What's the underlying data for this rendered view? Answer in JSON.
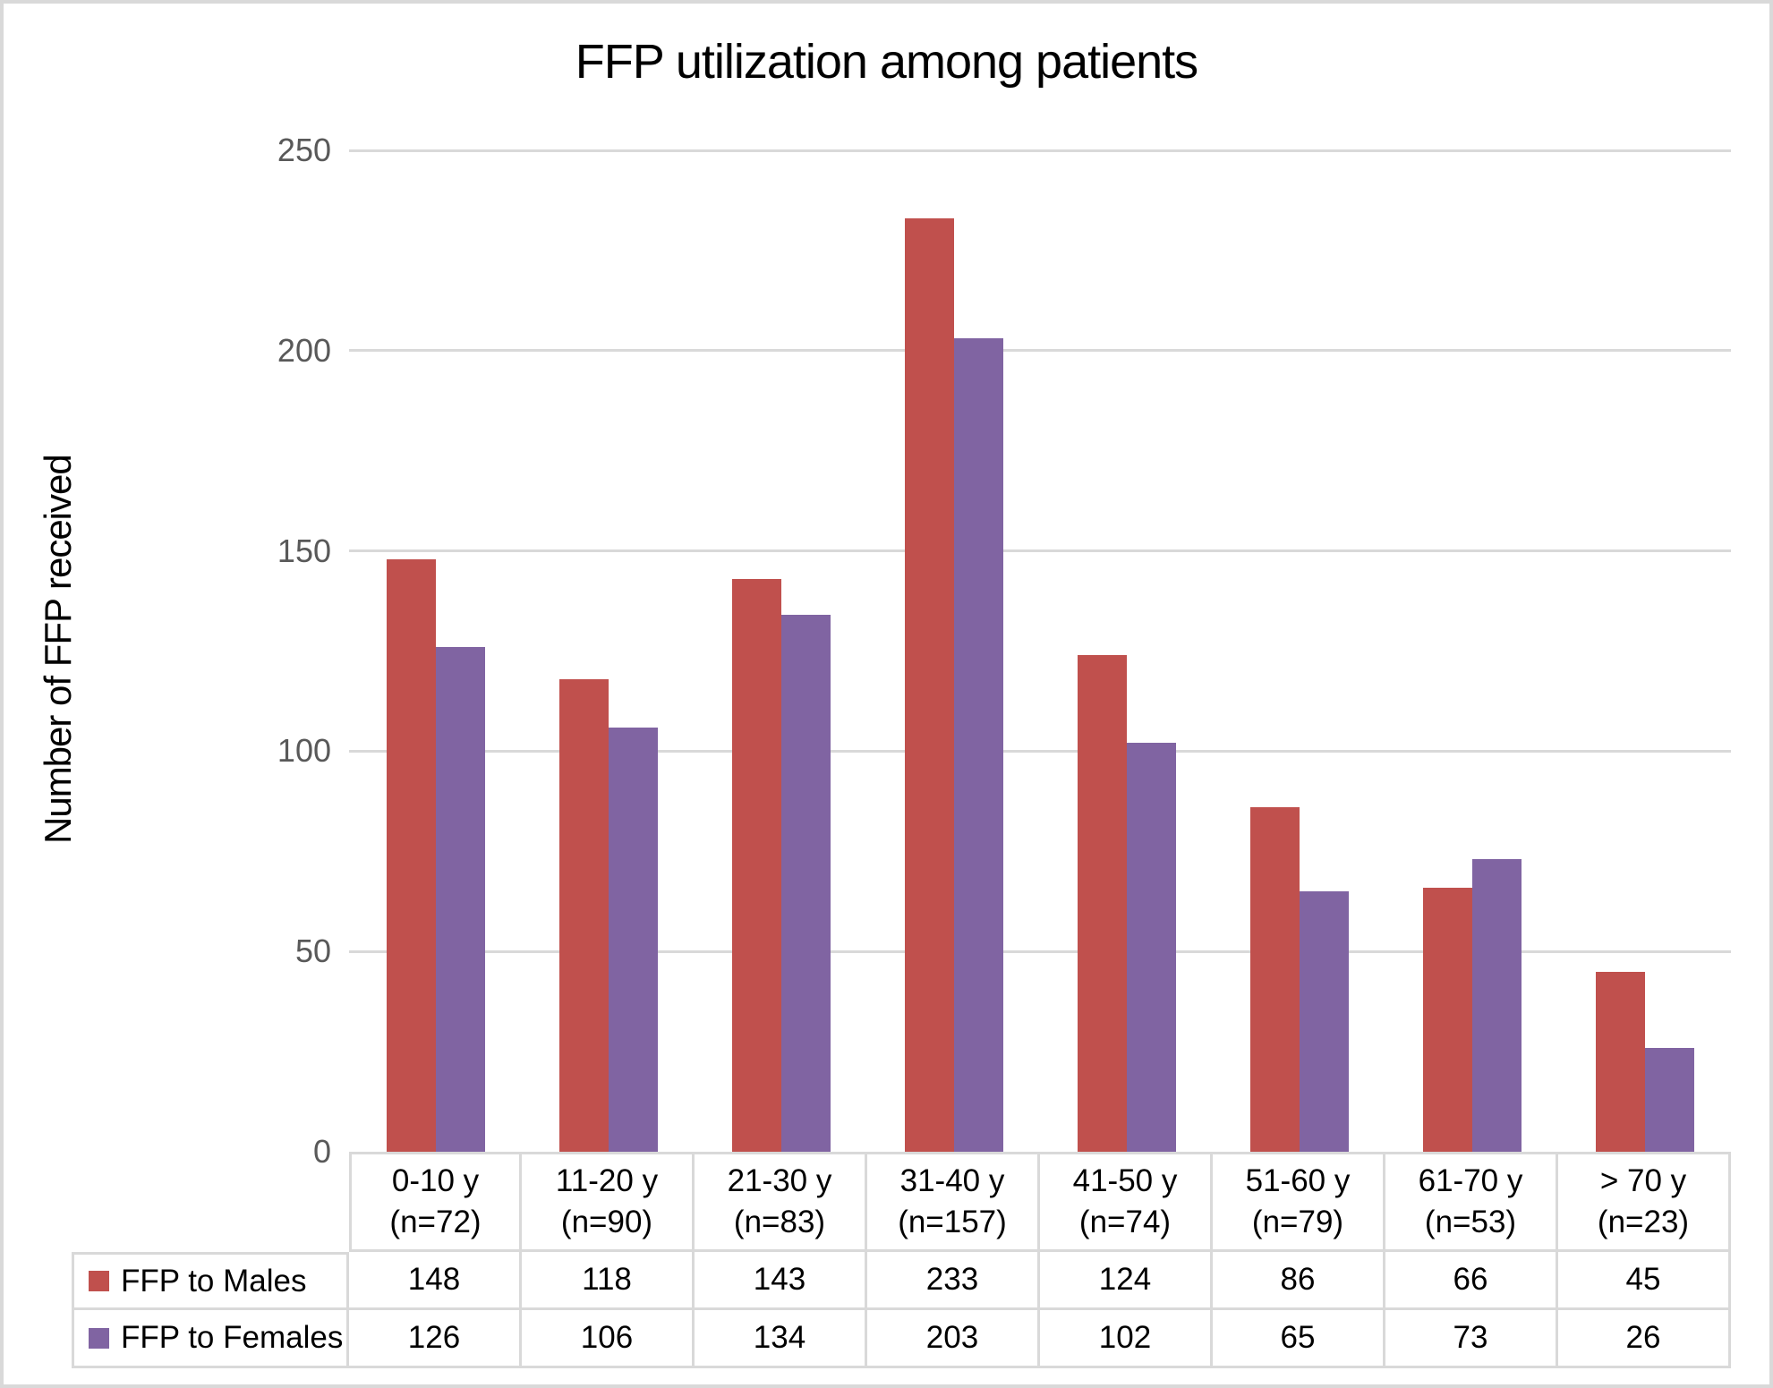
{
  "title": "FFP utilization among patients",
  "y_axis": {
    "title": "Number of FFP received"
  },
  "colors": {
    "males": "#C0504D",
    "females": "#8064A2",
    "gridline": "#D9D9D9",
    "table_border": "#D9D9D9",
    "tick_text": "#595959",
    "frame": "#D9D9D9",
    "text": "#000000"
  },
  "chart_data": {
    "type": "bar",
    "title": "FFP utilization among patients",
    "xlabel": "",
    "ylabel": "Number of FFP received",
    "ylim": [
      0,
      250
    ],
    "yticks": [
      0,
      50,
      100,
      150,
      200,
      250
    ],
    "grid": true,
    "legend_position": "table-left",
    "categories": [
      "0-10 y",
      "11-20 y",
      "21-30 y",
      "31-40 y",
      "41-50 y",
      "51-60 y",
      "61-70 y",
      "> 70 y"
    ],
    "category_counts": [
      "(n=72)",
      "(n=90)",
      "(n=83)",
      "(n=157)",
      "(n=74)",
      "(n=79)",
      "(n=53)",
      "(n=23)"
    ],
    "series": [
      {
        "name": "FFP to Males",
        "color": "#C0504D",
        "values": [
          148,
          118,
          143,
          233,
          124,
          86,
          66,
          45
        ]
      },
      {
        "name": "FFP to Females",
        "color": "#8064A2",
        "values": [
          126,
          106,
          134,
          203,
          102,
          65,
          73,
          26
        ]
      }
    ]
  }
}
